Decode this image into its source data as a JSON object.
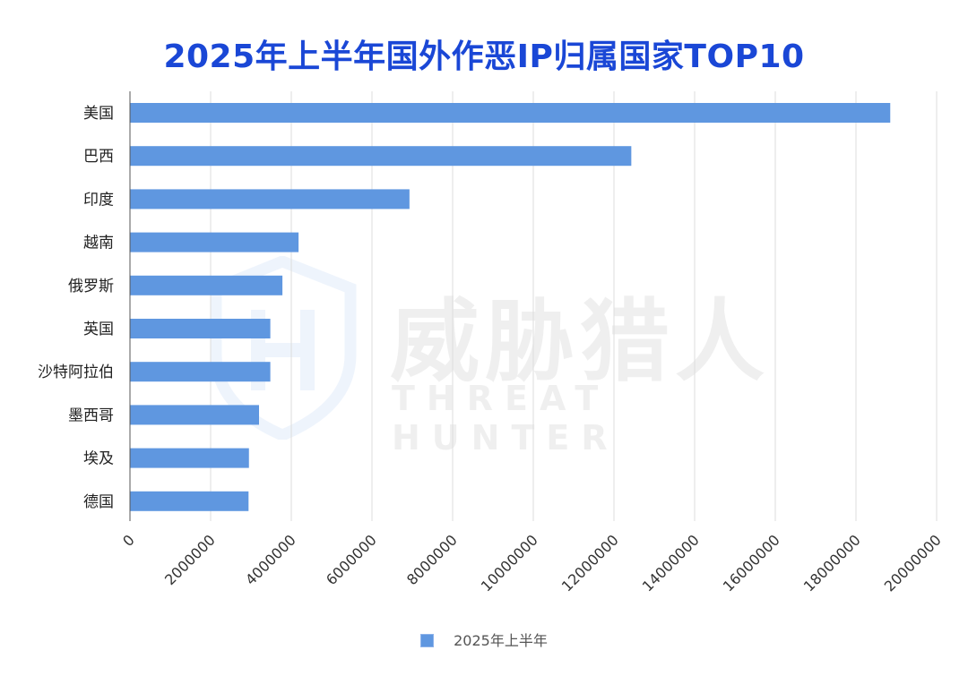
{
  "title": "2025年上半年国外作恶IP归属国家TOP10",
  "watermark": {
    "cn": "威胁猎人",
    "en": "THREAT HUNTER"
  },
  "legend": {
    "label": "2025年上半年",
    "color": "#5f97e0"
  },
  "chart_data": {
    "type": "bar",
    "orientation": "horizontal",
    "title": "2025年上半年国外作恶IP归属国家TOP10",
    "categories": [
      "美国",
      "巴西",
      "印度",
      "越南",
      "俄罗斯",
      "英国",
      "沙特阿拉伯",
      "墨西哥",
      "埃及",
      "德国"
    ],
    "series": [
      {
        "name": "2025年上半年",
        "color": "#5f97e0",
        "values": [
          18850000,
          12430000,
          6930000,
          4180000,
          3780000,
          3480000,
          3480000,
          3200000,
          2950000,
          2940000
        ]
      }
    ],
    "xlim": [
      0,
      20000000
    ],
    "xticks": [
      "0",
      "2000000",
      "4000000",
      "6000000",
      "8000000",
      "10000000",
      "12000000",
      "14000000",
      "16000000",
      "18000000",
      "20000000"
    ],
    "grid": "vertical",
    "legend_position": "bottom"
  }
}
